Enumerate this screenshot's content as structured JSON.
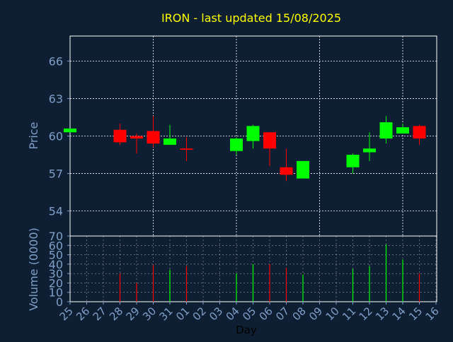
{
  "title": "IRON - last updated 15/08/2025",
  "colors": {
    "background": "#0f1f33",
    "title": "#ffff00",
    "axis_text": "#7f9fc8",
    "up": "#00ff00",
    "down": "#ff0000",
    "grid": "#ffffff"
  },
  "chart_data": [
    {
      "type": "candlestick",
      "ylabel": "Price",
      "ylim": [
        52,
        68
      ],
      "yticks": [
        54,
        57,
        60,
        63,
        66
      ],
      "grid": true,
      "x": [
        "25",
        "26",
        "27",
        "28",
        "29",
        "30",
        "31",
        "01",
        "02",
        "03",
        "04",
        "05",
        "06",
        "07",
        "08",
        "09",
        "10",
        "11",
        "12",
        "13",
        "14",
        "15",
        "16"
      ],
      "candles": [
        {
          "day": "25",
          "open": 60.3,
          "high": 60.6,
          "low": 60.3,
          "close": 60.6
        },
        {
          "day": "28",
          "open": 60.5,
          "high": 61.0,
          "low": 59.3,
          "close": 59.5
        },
        {
          "day": "29",
          "open": 60.0,
          "high": 60.2,
          "low": 58.6,
          "close": 59.8
        },
        {
          "day": "30",
          "open": 60.4,
          "high": 61.6,
          "low": 59.1,
          "close": 59.4
        },
        {
          "day": "31",
          "open": 59.3,
          "high": 60.9,
          "low": 59.3,
          "close": 59.8
        },
        {
          "day": "01",
          "open": 59.0,
          "high": 59.9,
          "low": 58.0,
          "close": 58.9
        },
        {
          "day": "04",
          "open": 58.8,
          "high": 59.9,
          "low": 58.5,
          "close": 59.8
        },
        {
          "day": "05",
          "open": 59.6,
          "high": 60.9,
          "low": 59.0,
          "close": 60.8
        },
        {
          "day": "06",
          "open": 60.3,
          "high": 60.3,
          "low": 57.6,
          "close": 59.0
        },
        {
          "day": "07",
          "open": 57.5,
          "high": 59.0,
          "low": 56.4,
          "close": 56.9
        },
        {
          "day": "08",
          "open": 56.6,
          "high": 58.0,
          "low": 56.6,
          "close": 58.0
        },
        {
          "day": "11",
          "open": 57.5,
          "high": 58.6,
          "low": 57.0,
          "close": 58.5
        },
        {
          "day": "12",
          "open": 58.7,
          "high": 60.3,
          "low": 58.0,
          "close": 59.0
        },
        {
          "day": "13",
          "open": 59.8,
          "high": 61.6,
          "low": 59.4,
          "close": 61.1
        },
        {
          "day": "14",
          "open": 60.2,
          "high": 61.0,
          "low": 60.2,
          "close": 60.7
        },
        {
          "day": "15",
          "open": 60.8,
          "high": 60.9,
          "low": 59.3,
          "close": 59.8
        }
      ]
    },
    {
      "type": "bar",
      "ylabel": "Volume (0000)",
      "xlabel": "Day",
      "ylim": [
        0,
        70
      ],
      "yticks": [
        0,
        10,
        20,
        30,
        40,
        50,
        60,
        70
      ],
      "grid": true,
      "bars": [
        {
          "day": "28",
          "value": 30,
          "color": "down"
        },
        {
          "day": "29",
          "value": 20,
          "color": "down"
        },
        {
          "day": "30",
          "value": 39,
          "color": "down"
        },
        {
          "day": "31",
          "value": 34,
          "color": "up"
        },
        {
          "day": "01",
          "value": 38,
          "color": "down"
        },
        {
          "day": "04",
          "value": 30,
          "color": "up"
        },
        {
          "day": "05",
          "value": 40,
          "color": "up"
        },
        {
          "day": "06",
          "value": 40,
          "color": "down"
        },
        {
          "day": "07",
          "value": 36,
          "color": "down"
        },
        {
          "day": "08",
          "value": 29,
          "color": "up"
        },
        {
          "day": "11",
          "value": 35,
          "color": "up"
        },
        {
          "day": "12",
          "value": 38,
          "color": "up"
        },
        {
          "day": "13",
          "value": 61,
          "color": "up"
        },
        {
          "day": "14",
          "value": 45,
          "color": "up"
        },
        {
          "day": "15",
          "value": 30,
          "color": "down"
        }
      ]
    }
  ]
}
